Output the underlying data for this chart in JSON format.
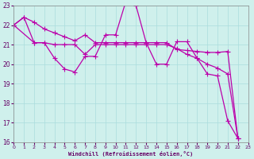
{
  "xlabel": "Windchill (Refroidissement éolien,°C)",
  "background_color": "#cff0ec",
  "line_color": "#bb00aa",
  "grid_color": "#aadddd",
  "xlim": [
    0,
    23
  ],
  "ylim": [
    16,
    23
  ],
  "yticks": [
    16,
    17,
    18,
    19,
    20,
    21,
    22,
    23
  ],
  "xticks": [
    0,
    1,
    2,
    3,
    4,
    5,
    6,
    7,
    8,
    9,
    10,
    11,
    12,
    13,
    14,
    15,
    16,
    17,
    18,
    19,
    20,
    21,
    22,
    23
  ],
  "series": [
    {
      "x": [
        0,
        1,
        2,
        3,
        4,
        5,
        6,
        7,
        8,
        9,
        10,
        11,
        12,
        13,
        14,
        15,
        16,
        17,
        18,
        19,
        20,
        21,
        22
      ],
      "y": [
        22.0,
        22.4,
        22.15,
        21.8,
        21.6,
        21.4,
        21.2,
        21.5,
        21.1,
        21.1,
        21.1,
        21.1,
        21.1,
        21.1,
        21.1,
        21.1,
        20.75,
        20.7,
        20.65,
        20.6,
        20.6,
        20.65,
        16.2
      ]
    },
    {
      "x": [
        0,
        1,
        2,
        3,
        4,
        5,
        6,
        7,
        8,
        9,
        10,
        11,
        12,
        13,
        14,
        15,
        16,
        17,
        18,
        19,
        20,
        21,
        22
      ],
      "y": [
        22.0,
        22.4,
        21.1,
        21.1,
        20.3,
        19.75,
        19.6,
        20.4,
        20.4,
        21.5,
        21.5,
        23.2,
        23.0,
        21.1,
        20.0,
        20.0,
        21.15,
        21.15,
        20.3,
        19.5,
        19.4,
        17.1,
        16.2
      ]
    },
    {
      "x": [
        0,
        2,
        3,
        4,
        5,
        6,
        7,
        8,
        9,
        10,
        11,
        12,
        13,
        14,
        15,
        16,
        17,
        18,
        19,
        20,
        21,
        22
      ],
      "y": [
        22.0,
        21.1,
        21.1,
        21.0,
        21.0,
        21.0,
        20.5,
        21.0,
        21.0,
        21.0,
        21.0,
        21.0,
        21.0,
        21.0,
        21.0,
        20.8,
        20.5,
        20.3,
        20.0,
        19.8,
        19.5,
        16.2
      ]
    }
  ]
}
